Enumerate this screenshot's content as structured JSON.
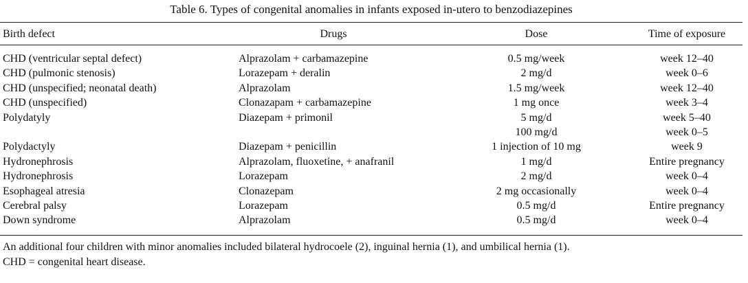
{
  "table": {
    "title": "Table 6. Types of congenital anomalies in infants exposed in-utero to benzodiazepines",
    "header": [
      "Birth defect",
      "Drugs",
      "Dose",
      "Time of exposure"
    ],
    "rows": [
      [
        "CHD (ventricular septal defect)",
        "Alprazolam + carbamazepine",
        "0.5 mg/week",
        "week 12–40"
      ],
      [
        "CHD (pulmonic stenosis)",
        "Lorazepam + deralin",
        "2 mg/d",
        "week 0–6"
      ],
      [
        "CHD (unspecified; neonatal death)",
        "Alprazolam",
        "1.5 mg/week",
        "week 12–40"
      ],
      [
        "CHD (unspecified)",
        "Clonazapam + carbamazepine",
        "1 mg once",
        "week 3–4"
      ],
      [
        "Polydatyly",
        "Diazepam + primonil",
        "5 mg/d",
        "week 5–40"
      ],
      [
        null,
        null,
        "100 mg/d",
        "week 0–5"
      ],
      [
        "Polydactyly",
        "Diazepam + penicillin",
        "1 injection of 10 mg",
        "week 9"
      ],
      [
        "Hydronephrosis",
        "Alprazolam, fluoxetine, + anafranil",
        "1 mg/d",
        "Entire pregnancy"
      ],
      [
        "Hydronephrosis",
        "Lorazepam",
        "2 mg/d",
        "week 0–4"
      ],
      [
        "Esophageal atresia",
        "Clonazepam",
        "2 mg occasionally",
        "week 0–4"
      ],
      [
        "Cerebral palsy",
        "Lorazepam",
        "0.5 mg/d",
        "Entire pregnancy"
      ],
      [
        "Down syndrome",
        "Alprazolam",
        "0.5 mg/d",
        "week 0–4"
      ]
    ],
    "footnotes": [
      "An additional four children with minor anomalies included bilateral hydrocoele (2), inguinal hernia (1), and umbilical hernia (1).",
      "CHD = congenital heart disease."
    ]
  }
}
